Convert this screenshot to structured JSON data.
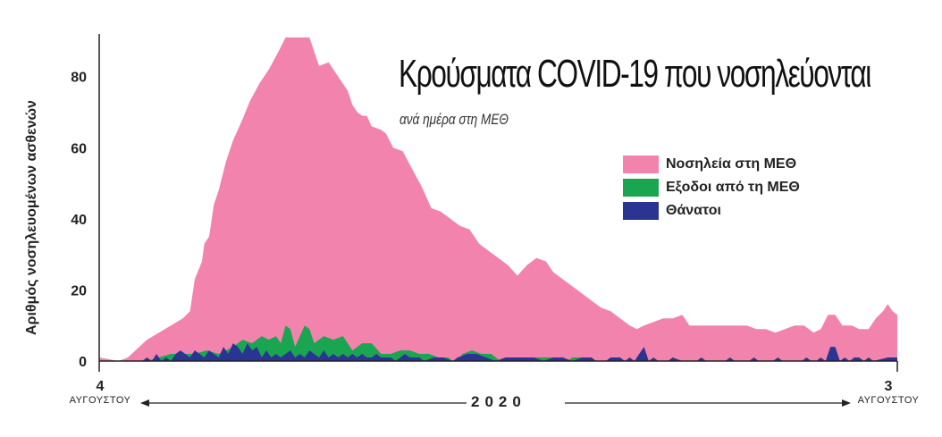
{
  "chart_data": {
    "type": "area",
    "title": "Κρούσματα COVID-19 που νοσηλεύονται",
    "subtitle": "ανά ημέρα στη ΜΕΘ",
    "ylabel": "Αριθμός νοσηλευομένων ασθενών",
    "ylim": [
      0,
      94
    ],
    "yticks": [
      0,
      20,
      40,
      60,
      80
    ],
    "xlim": [
      0,
      365
    ],
    "year_label": "2020",
    "x_start": {
      "day": "4",
      "month": "ΑΥΓΟΥΣΤΟΥ"
    },
    "x_end": {
      "day": "3",
      "month": "ΑΥΓΟΥΣΤΟΥ"
    },
    "legend_position": "right",
    "series": [
      {
        "name": "Νοσηλεία στη ΜΕΘ",
        "color": "#f283ad",
        "points": [
          [
            0,
            1
          ],
          [
            8,
            0
          ],
          [
            12,
            1
          ],
          [
            20,
            6
          ],
          [
            25,
            8
          ],
          [
            30,
            10
          ],
          [
            35,
            12
          ],
          [
            38,
            14
          ],
          [
            40,
            23
          ],
          [
            43,
            28
          ],
          [
            44,
            33
          ],
          [
            46,
            35
          ],
          [
            48,
            44
          ],
          [
            50,
            48
          ],
          [
            53,
            56
          ],
          [
            56,
            62
          ],
          [
            60,
            68
          ],
          [
            63,
            73
          ],
          [
            67,
            78
          ],
          [
            71,
            82
          ],
          [
            75,
            87
          ],
          [
            78,
            91
          ],
          [
            81,
            91
          ],
          [
            84,
            91
          ],
          [
            86,
            91
          ],
          [
            88,
            91
          ],
          [
            90,
            87
          ],
          [
            92,
            83
          ],
          [
            96,
            84
          ],
          [
            100,
            80
          ],
          [
            104,
            76
          ],
          [
            106,
            72
          ],
          [
            108,
            70
          ],
          [
            110,
            69
          ],
          [
            112,
            69
          ],
          [
            114,
            66
          ],
          [
            118,
            65
          ],
          [
            120,
            64
          ],
          [
            123,
            60
          ],
          [
            127,
            59
          ],
          [
            131,
            54
          ],
          [
            135,
            49
          ],
          [
            139,
            43
          ],
          [
            143,
            42
          ],
          [
            147,
            40
          ],
          [
            151,
            38
          ],
          [
            155,
            37
          ],
          [
            159,
            33
          ],
          [
            163,
            31
          ],
          [
            167,
            29
          ],
          [
            171,
            27
          ],
          [
            175,
            24
          ],
          [
            179,
            27
          ],
          [
            183,
            29
          ],
          [
            187,
            28
          ],
          [
            190,
            25
          ],
          [
            194,
            23
          ],
          [
            198,
            21
          ],
          [
            202,
            19
          ],
          [
            206,
            17
          ],
          [
            210,
            15
          ],
          [
            214,
            14
          ],
          [
            218,
            12
          ],
          [
            222,
            10
          ],
          [
            225,
            9
          ],
          [
            228,
            10
          ],
          [
            232,
            11
          ],
          [
            236,
            12
          ],
          [
            240,
            12
          ],
          [
            244,
            13
          ],
          [
            247,
            10
          ],
          [
            251,
            10
          ],
          [
            255,
            10
          ],
          [
            259,
            10
          ],
          [
            263,
            10
          ],
          [
            267,
            10
          ],
          [
            271,
            10
          ],
          [
            275,
            9
          ],
          [
            279,
            9
          ],
          [
            283,
            8
          ],
          [
            287,
            9
          ],
          [
            291,
            10
          ],
          [
            295,
            10
          ],
          [
            299,
            8
          ],
          [
            302,
            9
          ],
          [
            305,
            13
          ],
          [
            308,
            13
          ],
          [
            311,
            10
          ],
          [
            315,
            10
          ],
          [
            318,
            9
          ],
          [
            322,
            9
          ],
          [
            325,
            12
          ],
          [
            328,
            14
          ],
          [
            330,
            16
          ],
          [
            332,
            14
          ],
          [
            334,
            13
          ],
          [
            334,
            0
          ],
          [
            0,
            0
          ]
        ]
      },
      {
        "name": "Εξοδοι από τη ΜΕΘ",
        "color": "#1aa651",
        "points": [
          [
            0,
            0
          ],
          [
            20,
            0
          ],
          [
            25,
            1
          ],
          [
            30,
            2
          ],
          [
            35,
            2
          ],
          [
            40,
            2
          ],
          [
            45,
            3
          ],
          [
            50,
            2
          ],
          [
            53,
            3
          ],
          [
            56,
            4
          ],
          [
            60,
            6
          ],
          [
            64,
            5
          ],
          [
            68,
            7
          ],
          [
            71,
            6
          ],
          [
            74,
            7
          ],
          [
            76,
            5
          ],
          [
            78,
            10
          ],
          [
            80,
            9
          ],
          [
            82,
            4
          ],
          [
            86,
            10
          ],
          [
            88,
            9
          ],
          [
            90,
            5
          ],
          [
            94,
            7
          ],
          [
            98,
            6
          ],
          [
            102,
            7
          ],
          [
            106,
            3
          ],
          [
            110,
            5
          ],
          [
            114,
            5
          ],
          [
            118,
            2
          ],
          [
            122,
            2
          ],
          [
            126,
            3
          ],
          [
            130,
            3
          ],
          [
            134,
            2
          ],
          [
            138,
            2
          ],
          [
            142,
            1
          ],
          [
            146,
            1
          ],
          [
            148,
            0
          ],
          [
            150,
            0
          ],
          [
            152,
            2
          ],
          [
            156,
            3
          ],
          [
            160,
            2
          ],
          [
            164,
            2
          ],
          [
            166,
            1
          ],
          [
            168,
            0
          ],
          [
            180,
            0
          ],
          [
            182,
            1
          ],
          [
            186,
            1
          ],
          [
            190,
            1
          ],
          [
            193,
            0
          ],
          [
            196,
            0
          ],
          [
            198,
            1
          ],
          [
            202,
            1
          ],
          [
            204,
            0
          ],
          [
            330,
            0
          ],
          [
            334,
            0
          ]
        ]
      },
      {
        "name": "Θάνατοι",
        "color": "#2a3593",
        "points": [
          [
            0,
            0
          ],
          [
            18,
            0
          ],
          [
            20,
            1
          ],
          [
            22,
            0
          ],
          [
            24,
            2
          ],
          [
            26,
            0
          ],
          [
            28,
            1
          ],
          [
            30,
            0
          ],
          [
            32,
            2
          ],
          [
            34,
            3
          ],
          [
            36,
            2
          ],
          [
            38,
            1
          ],
          [
            40,
            3
          ],
          [
            42,
            2
          ],
          [
            44,
            1
          ],
          [
            46,
            3
          ],
          [
            48,
            2
          ],
          [
            50,
            1
          ],
          [
            52,
            4
          ],
          [
            54,
            2
          ],
          [
            56,
            5
          ],
          [
            58,
            4
          ],
          [
            60,
            2
          ],
          [
            62,
            5
          ],
          [
            64,
            3
          ],
          [
            66,
            4
          ],
          [
            68,
            1
          ],
          [
            70,
            3
          ],
          [
            72,
            1
          ],
          [
            74,
            2
          ],
          [
            76,
            1
          ],
          [
            78,
            2
          ],
          [
            80,
            3
          ],
          [
            82,
            1
          ],
          [
            84,
            2
          ],
          [
            86,
            1
          ],
          [
            88,
            3
          ],
          [
            90,
            2
          ],
          [
            92,
            1
          ],
          [
            94,
            3
          ],
          [
            96,
            1
          ],
          [
            98,
            2
          ],
          [
            100,
            1
          ],
          [
            102,
            2
          ],
          [
            104,
            1
          ],
          [
            106,
            2
          ],
          [
            108,
            1
          ],
          [
            110,
            2
          ],
          [
            112,
            1
          ],
          [
            114,
            1
          ],
          [
            116,
            2
          ],
          [
            118,
            1
          ],
          [
            120,
            1
          ],
          [
            122,
            1
          ],
          [
            124,
            0
          ],
          [
            126,
            1
          ],
          [
            128,
            2
          ],
          [
            130,
            1
          ],
          [
            132,
            1
          ],
          [
            134,
            1
          ],
          [
            136,
            0
          ],
          [
            140,
            1
          ],
          [
            144,
            1
          ],
          [
            148,
            0
          ],
          [
            150,
            1
          ],
          [
            154,
            2
          ],
          [
            158,
            2
          ],
          [
            162,
            1
          ],
          [
            166,
            0
          ],
          [
            170,
            1
          ],
          [
            174,
            1
          ],
          [
            178,
            1
          ],
          [
            182,
            1
          ],
          [
            186,
            0
          ],
          [
            190,
            1
          ],
          [
            194,
            1
          ],
          [
            198,
            0
          ],
          [
            202,
            1
          ],
          [
            206,
            1
          ],
          [
            208,
            0
          ],
          [
            212,
            0
          ],
          [
            214,
            1
          ],
          [
            218,
            1
          ],
          [
            220,
            0
          ],
          [
            222,
            1
          ],
          [
            224,
            0
          ],
          [
            226,
            2
          ],
          [
            228,
            4
          ],
          [
            230,
            0
          ],
          [
            232,
            1
          ],
          [
            234,
            0
          ],
          [
            238,
            0
          ],
          [
            240,
            1
          ],
          [
            244,
            0
          ],
          [
            250,
            0
          ],
          [
            252,
            1
          ],
          [
            254,
            0
          ],
          [
            262,
            0
          ],
          [
            264,
            1
          ],
          [
            266,
            0
          ],
          [
            272,
            0
          ],
          [
            274,
            1
          ],
          [
            276,
            0
          ],
          [
            282,
            0
          ],
          [
            284,
            1
          ],
          [
            286,
            0
          ],
          [
            294,
            0
          ],
          [
            296,
            1
          ],
          [
            298,
            0
          ],
          [
            300,
            0
          ],
          [
            302,
            1
          ],
          [
            304,
            0
          ],
          [
            306,
            4
          ],
          [
            308,
            4
          ],
          [
            310,
            0
          ],
          [
            312,
            1
          ],
          [
            314,
            0
          ],
          [
            316,
            1
          ],
          [
            318,
            1
          ],
          [
            320,
            0
          ],
          [
            322,
            1
          ],
          [
            324,
            0
          ],
          [
            330,
            1
          ],
          [
            334,
            1
          ]
        ]
      }
    ]
  }
}
